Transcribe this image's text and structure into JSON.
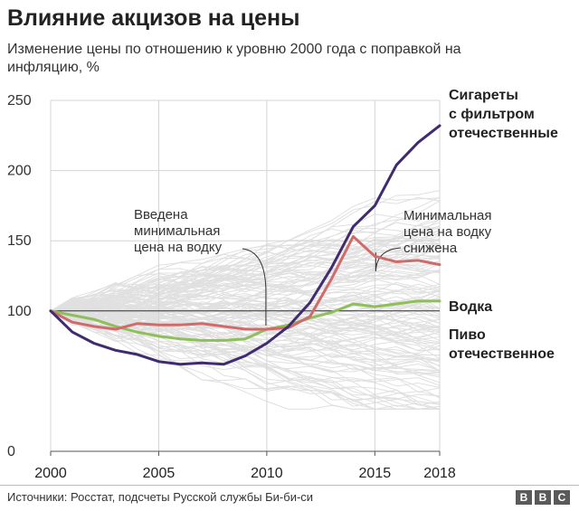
{
  "title": "Влияние акцизов на цены",
  "subtitle": "Изменение цены по отношению к уровню 2000 года с поправкой на инфляцию, %",
  "source": "Источники: Росстат, подсчеты Русской службы Би-би-си",
  "logo_letters": [
    "B",
    "B",
    "C"
  ],
  "chart_data": {
    "type": "line",
    "xlim": [
      2000,
      2018
    ],
    "ylim": [
      0,
      250
    ],
    "x_ticks": [
      "2000",
      "2005",
      "2010",
      "2015",
      "2018"
    ],
    "y_ticks": [
      "0",
      "100",
      "150",
      "200",
      "250"
    ],
    "reference_line": 100,
    "series": [
      {
        "name": "Сигареты с фильтром отечественные",
        "name_lines": [
          "Сигареты",
          "с фильтром",
          "отечественные"
        ],
        "color": "#3f2b6e",
        "x": [
          2000,
          2001,
          2002,
          2003,
          2004,
          2005,
          2006,
          2007,
          2008,
          2009,
          2010,
          2011,
          2012,
          2013,
          2014,
          2015,
          2016,
          2017,
          2018
        ],
        "y": [
          100,
          85,
          77,
          72,
          69,
          64,
          62,
          63,
          62,
          68,
          77,
          89,
          106,
          131,
          160,
          175,
          204,
          220,
          232
        ]
      },
      {
        "name": "Водка",
        "name_lines": [
          "Водка"
        ],
        "color": "#d06b6b",
        "x": [
          2000,
          2001,
          2002,
          2003,
          2004,
          2005,
          2006,
          2007,
          2008,
          2009,
          2010,
          2011,
          2012,
          2013,
          2014,
          2015,
          2016,
          2017,
          2018
        ],
        "y": [
          100,
          92,
          89,
          87,
          91,
          90,
          90,
          91,
          89,
          87,
          87,
          88,
          96,
          123,
          153,
          139,
          135,
          136,
          133
        ]
      },
      {
        "name": "Пиво отечественное",
        "name_lines": [
          "Пиво",
          "отечественное"
        ],
        "color": "#8fbf5a",
        "x": [
          2000,
          2001,
          2002,
          2003,
          2004,
          2005,
          2006,
          2007,
          2008,
          2009,
          2010,
          2011,
          2012,
          2013,
          2014,
          2015,
          2016,
          2017,
          2018
        ],
        "y": [
          100,
          97,
          94,
          89,
          85,
          82,
          80,
          79,
          79,
          80,
          87,
          90,
          95,
          99,
          105,
          103,
          105,
          107,
          107
        ]
      }
    ],
    "annotations": [
      {
        "lines": [
          "Введена",
          "минимальная",
          "цена на водку"
        ],
        "x": 2010,
        "y": 87
      },
      {
        "lines": [
          "Минимальная",
          "цена на водку",
          "снижена"
        ],
        "x": 2015,
        "y": 139
      }
    ]
  }
}
